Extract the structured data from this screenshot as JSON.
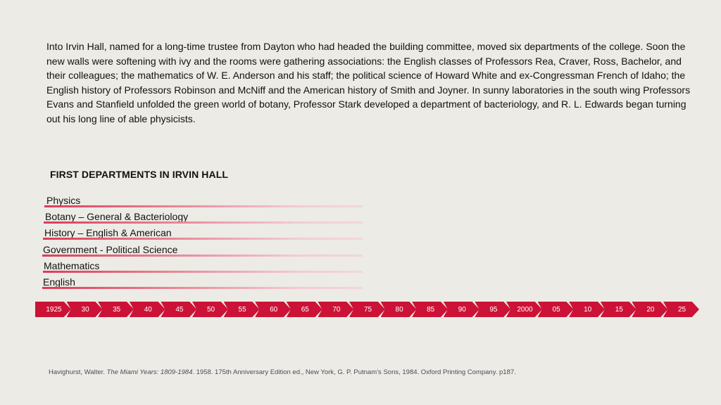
{
  "paragraph": "Into Irvin Hall, named for a long-time trustee from Dayton who had headed the building committee, moved six departments of the college. Soon the new walls were softening with ivy and the rooms were gathering associations: the English classes of Professors Rea, Craver, Ross, Bachelor, and their colleagues; the mathematics of W. E. Anderson and his staff; the political science of Howard White and ex-Congressman French of Idaho; the English history of Professors Robinson and McNiff and the American history of Smith and Joyner. In sunny laboratories in the south wing Professors Evans and Stanfield unfolded the green world of botany, Professor Stark developed a department of bacteriology, and R. L. Edwards began turning out his long line of able physicists.",
  "departments": {
    "heading": "FIRST DEPARTMENTS IN IRVIN HALL",
    "items": [
      {
        "label": "Physics"
      },
      {
        "label": "Botany – General & Bacteriology"
      },
      {
        "label": "History – English & American"
      },
      {
        "label": "Government - Political Science"
      },
      {
        "label": "Mathematics"
      },
      {
        "label": "English"
      }
    ]
  },
  "timeline": {
    "color": "#cc1236",
    "labels": [
      "1925",
      "30",
      "35",
      "40",
      "45",
      "50",
      "55",
      "60",
      "65",
      "70",
      "75",
      "80",
      "85",
      "90",
      "95",
      "2000",
      "05",
      "10",
      "15",
      "20",
      "25"
    ]
  },
  "citation": {
    "prefix": "Havighurst, Walter. ",
    "title": "The Miami Years: 1809-1984",
    "suffix": ". 1958. 175th Anniversary Edition ed., New York, G. P. Putnam’s Sons, 1984. Oxford Printing Company. p187."
  }
}
